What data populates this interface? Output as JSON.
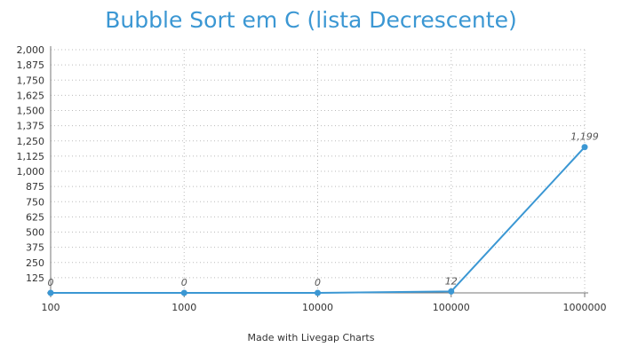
{
  "chart_data": {
    "type": "line",
    "title": "Bubble Sort em C (lista Decrescente)",
    "xlabel": "",
    "ylabel": "",
    "categories": [
      "100",
      "1000",
      "10000",
      "100000",
      "1000000"
    ],
    "series": [
      {
        "values": [
          0,
          0,
          0,
          12,
          1199
        ],
        "data_labels": [
          "0",
          "0",
          "0",
          "12",
          "1,199"
        ]
      }
    ],
    "ylim": [
      0,
      2000
    ],
    "y_ticks": [
      125,
      250,
      375,
      500,
      625,
      750,
      875,
      1000,
      1125,
      1250,
      1375,
      1500,
      1625,
      1750,
      1875,
      2000
    ],
    "y_tick_labels": [
      "125",
      "250",
      "375",
      "500",
      "625",
      "750",
      "875",
      "1,000",
      "1,125",
      "1,250",
      "1,375",
      "1,500",
      "1,625",
      "1,750",
      "1,875",
      "2,000"
    ],
    "grid": true,
    "line_color": "#3b97d3",
    "grid_color": "#bbbbbb"
  },
  "footer": "Made with Livegap Charts"
}
